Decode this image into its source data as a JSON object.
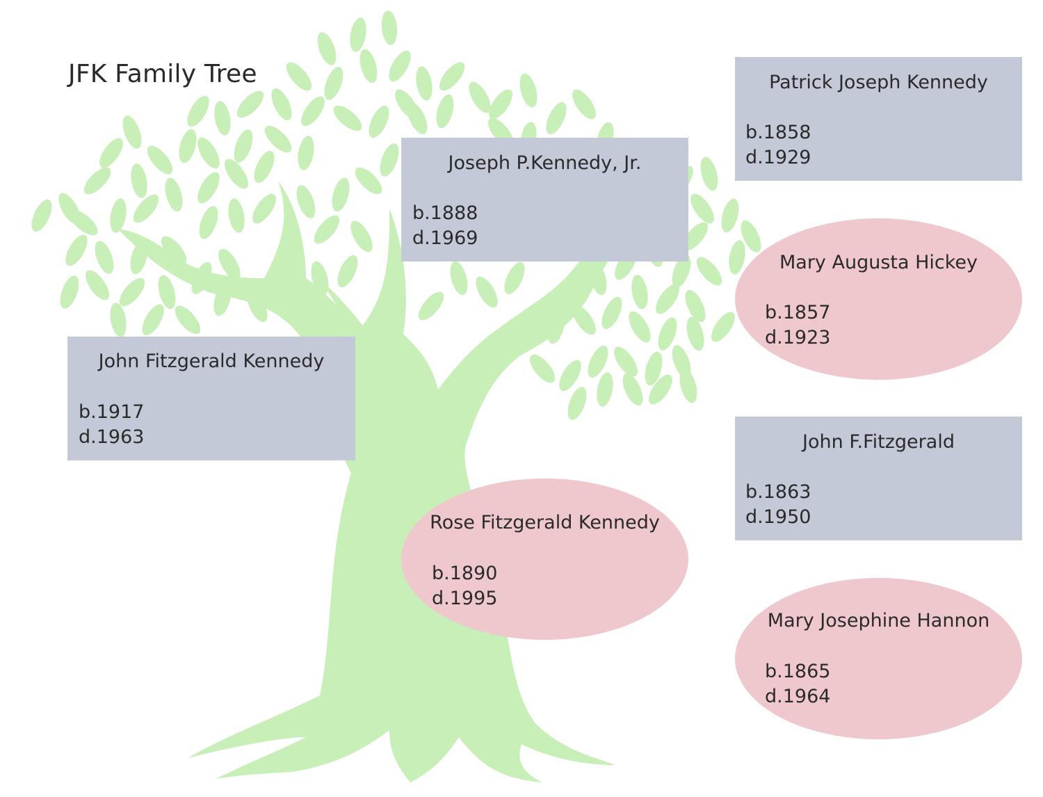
{
  "title": "JFK Family Tree",
  "colors": {
    "tree": "#c8efb8",
    "male_box": "#c3c9d6",
    "female_ellipse": "#eec8cd",
    "text": "#2a2a2a"
  },
  "people": {
    "jfk": {
      "name": "John Fitzgerald Kennedy",
      "born": "b.1917",
      "died": "d.1963"
    },
    "joseph": {
      "name": "Joseph P.Kennedy, Jr.",
      "born": "b.1888",
      "died": "d.1969"
    },
    "rose": {
      "name": "Rose Fitzgerald Kennedy",
      "born": "b.1890",
      "died": "d.1995"
    },
    "patrick": {
      "name": "Patrick Joseph Kennedy",
      "born": "b.1858",
      "died": "d.1929"
    },
    "mary_hickey": {
      "name": "Mary Augusta Hickey",
      "born": "b.1857",
      "died": "d.1923"
    },
    "john_f": {
      "name": "John F.Fitzgerald",
      "born": "b.1863",
      "died": "d.1950"
    },
    "mary_hannon": {
      "name": "Mary Josephine Hannon",
      "born": "b.1865",
      "died": "d.1964"
    }
  }
}
